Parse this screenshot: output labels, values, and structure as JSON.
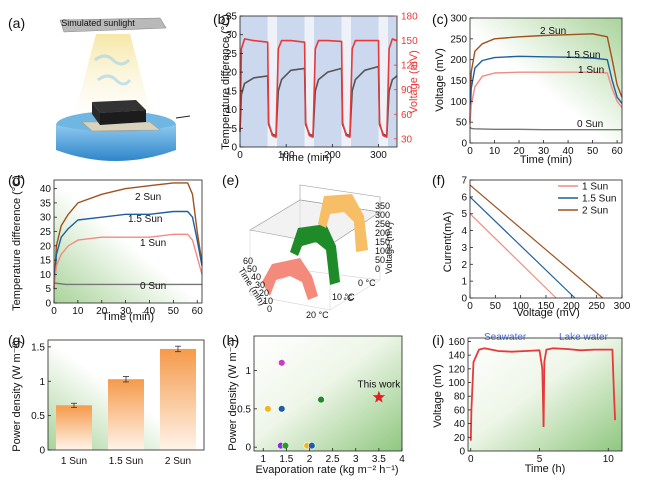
{
  "panels": {
    "a": {
      "label": "(a)",
      "lamp_text": "Simulated sunlight"
    },
    "b": {
      "label": "(b)"
    },
    "c": {
      "label": "(c)"
    },
    "d": {
      "label": "(d)"
    },
    "e": {
      "label": "(e)"
    },
    "f": {
      "label": "(f)"
    },
    "g": {
      "label": "(g)"
    },
    "h": {
      "label": "(h)"
    },
    "i": {
      "label": "(i)"
    }
  },
  "colors": {
    "red": "#e8393a",
    "dark_gray": "#555555",
    "sun1": "#f28b82",
    "sun15": "#1f5f9e",
    "sun2": "#a0521e",
    "gray": "#777777",
    "blue_band": "#b9cbe8",
    "green_bar": "#1e8a28",
    "salmon_bar": "#f48a7c",
    "yellow_bar": "#f7be65",
    "seawater": "#4a6fd8",
    "lake": "#4a6fd8",
    "star": "#e02020"
  },
  "chart_data": [
    {
      "id": "b",
      "type": "line",
      "xlabel": "Time (min)",
      "ylabel": "Temperature difference (°C)",
      "ylabel2": "Voltage (mV)",
      "xlim": [
        0,
        340
      ],
      "ylim": [
        0,
        35
      ],
      "ylim2": [
        20,
        180
      ],
      "xticks": [
        0,
        100,
        200,
        300
      ],
      "yticks": [
        0,
        5,
        10,
        15,
        20,
        25,
        30,
        35
      ],
      "yticks2": [
        30,
        60,
        90,
        120,
        150,
        180
      ],
      "illuminated_intervals": [
        [
          0,
          60
        ],
        [
          80,
          140
        ],
        [
          160,
          220
        ],
        [
          240,
          300
        ],
        [
          320,
          340
        ]
      ],
      "series": [
        {
          "name": "Temperature difference",
          "axis": "left",
          "color": "#555555",
          "x": [
            0,
            3,
            10,
            30,
            60,
            62,
            70,
            78,
            83,
            90,
            110,
            140,
            142,
            150,
            158,
            163,
            170,
            190,
            220,
            222,
            230,
            238,
            243,
            250,
            270,
            300,
            302,
            310,
            318,
            323,
            330,
            340
          ],
          "y": [
            4,
            14,
            17,
            18.5,
            19,
            6,
            3.5,
            3,
            15,
            18,
            20.5,
            21,
            6,
            3.5,
            3,
            15,
            18,
            20,
            21,
            6,
            3.5,
            3,
            15,
            18,
            20.5,
            21.5,
            6,
            3.5,
            3,
            15,
            18,
            19
          ]
        },
        {
          "name": "Voltage",
          "axis": "right",
          "color": "#e8393a",
          "x": [
            0,
            3,
            10,
            30,
            60,
            62,
            70,
            78,
            83,
            90,
            110,
            140,
            142,
            150,
            158,
            163,
            170,
            190,
            220,
            222,
            230,
            238,
            243,
            250,
            270,
            300,
            302,
            310,
            318,
            323,
            330,
            340
          ],
          "y": [
            40,
            140,
            152,
            150,
            148,
            50,
            34,
            32,
            140,
            150,
            150,
            148,
            50,
            34,
            32,
            140,
            150,
            150,
            149,
            50,
            34,
            32,
            140,
            150,
            150,
            150,
            50,
            34,
            32,
            140,
            152,
            150
          ]
        }
      ]
    },
    {
      "id": "c",
      "type": "line",
      "xlabel": "Time (min)",
      "ylabel": "Voltage (mV)",
      "xlim": [
        0,
        62
      ],
      "ylim": [
        0,
        300
      ],
      "xticks": [
        0,
        10,
        20,
        30,
        40,
        50,
        60
      ],
      "yticks": [
        0,
        50,
        100,
        150,
        200,
        250,
        300
      ],
      "series": [
        {
          "name": "2 Sun",
          "color": "#a0521e",
          "x": [
            0,
            0.5,
            2,
            5,
            10,
            20,
            30,
            40,
            50,
            56,
            58,
            60,
            62
          ],
          "y": [
            55,
            170,
            220,
            238,
            250,
            255,
            258,
            260,
            262,
            255,
            200,
            140,
            110
          ]
        },
        {
          "name": "1.5 Sun",
          "color": "#1f5f9e",
          "x": [
            0,
            0.5,
            2,
            5,
            10,
            20,
            30,
            40,
            50,
            56,
            58,
            60,
            62
          ],
          "y": [
            50,
            130,
            180,
            198,
            205,
            208,
            207,
            206,
            204,
            200,
            150,
            110,
            95
          ]
        },
        {
          "name": "1 Sun",
          "color": "#f28b82",
          "x": [
            0,
            0.5,
            2,
            5,
            10,
            20,
            30,
            40,
            50,
            56,
            58,
            60,
            62
          ],
          "y": [
            45,
            90,
            135,
            160,
            168,
            170,
            170,
            170,
            170,
            168,
            130,
            100,
            85
          ]
        },
        {
          "name": "0 Sun",
          "color": "#777777",
          "x": [
            0,
            0.5,
            2,
            10,
            20,
            30,
            40,
            50,
            60,
            62
          ],
          "y": [
            38,
            35,
            34,
            33,
            33,
            32,
            32,
            32,
            32,
            32
          ]
        }
      ]
    },
    {
      "id": "d",
      "type": "line",
      "xlabel": "Time (min)",
      "ylabel": "Temperature difference (°C)",
      "xlim": [
        0,
        62
      ],
      "ylim": [
        0,
        43
      ],
      "xticks": [
        0,
        10,
        20,
        30,
        40,
        50,
        60
      ],
      "yticks": [
        0,
        5,
        10,
        15,
        20,
        25,
        30,
        35,
        40
      ],
      "series": [
        {
          "name": "2 Sun",
          "color": "#a0521e",
          "x": [
            0,
            1,
            3,
            6,
            10,
            20,
            30,
            40,
            50,
            56,
            58,
            60,
            62
          ],
          "y": [
            5,
            20,
            27,
            31,
            35,
            38,
            40,
            41,
            42,
            42,
            38,
            25,
            14
          ]
        },
        {
          "name": "1.5 Sun",
          "color": "#1f5f9e",
          "x": [
            0,
            1,
            3,
            6,
            10,
            20,
            30,
            40,
            50,
            56,
            58,
            60,
            62
          ],
          "y": [
            5,
            17,
            23,
            26,
            29,
            30,
            31,
            31,
            32,
            32,
            30,
            22,
            13
          ]
        },
        {
          "name": "1 Sun",
          "color": "#f28b82",
          "x": [
            0,
            1,
            3,
            6,
            10,
            20,
            30,
            40,
            50,
            56,
            58,
            60,
            62
          ],
          "y": [
            5,
            13,
            17,
            20,
            22,
            23,
            23,
            23,
            24,
            24,
            22,
            16,
            10
          ]
        },
        {
          "name": "0 Sun",
          "color": "#777777",
          "x": [
            0,
            5,
            10,
            20,
            30,
            40,
            50,
            60,
            62
          ],
          "y": [
            7,
            6.5,
            6.5,
            6.5,
            6.5,
            6.5,
            6.5,
            6.5,
            6.5
          ]
        }
      ]
    },
    {
      "id": "e",
      "type": "other",
      "axis_labels": [
        "Time (min)",
        "°C",
        "Voltage (mV)"
      ],
      "tick_labels": [
        "350",
        "300",
        "250",
        "200",
        "150",
        "100",
        "50",
        "0",
        "60",
        "50",
        "40",
        "30",
        "20",
        "10",
        "0",
        "20 °C",
        "10 °C",
        "0 °C"
      ],
      "description": "3D ribbon plot of voltage vs time at 0, 10 and 20 °C"
    },
    {
      "id": "f",
      "type": "line",
      "xlabel": "Voltage (mV)",
      "ylabel": "Current(mA)",
      "xlim": [
        0,
        300
      ],
      "ylim": [
        0,
        7
      ],
      "xticks": [
        0,
        50,
        100,
        150,
        200,
        250,
        300
      ],
      "yticks": [
        0,
        1,
        2,
        3,
        4,
        5,
        6,
        7
      ],
      "series": [
        {
          "name": "1 Sun",
          "color": "#f28b82",
          "x": [
            0,
            170
          ],
          "y": [
            5.0,
            0
          ]
        },
        {
          "name": "1.5 Sun",
          "color": "#1f5f9e",
          "x": [
            0,
            207
          ],
          "y": [
            6.0,
            0
          ]
        },
        {
          "name": "2 Sun",
          "color": "#a0521e",
          "x": [
            0,
            262
          ],
          "y": [
            6.7,
            0
          ]
        }
      ]
    },
    {
      "id": "g",
      "type": "bar",
      "ylabel": "Power density (W m⁻²)",
      "ylim": [
        0,
        1.6
      ],
      "yticks": [
        0,
        0.5,
        1,
        1.5
      ],
      "ytick_labels": [
        "0",
        "0.5",
        "1",
        "1.5"
      ],
      "categories": [
        "1 Sun",
        "1.5 Sun",
        "2 Sun"
      ],
      "values": [
        0.65,
        1.03,
        1.47
      ],
      "errors": [
        0.03,
        0.04,
        0.04
      ]
    },
    {
      "id": "h",
      "type": "scatter",
      "xlabel": "Evaporation rate (kg m⁻² h⁻¹)",
      "ylabel": "Power density (W m⁻²)",
      "xlim": [
        0.8,
        4
      ],
      "ylim": [
        -0.05,
        1.45
      ],
      "xticks": [
        1,
        1.5,
        2,
        2.5,
        3,
        3.5,
        4
      ],
      "yticks": [
        0,
        0.5,
        1
      ],
      "points": [
        {
          "x": 1.4,
          "y": 1.1,
          "color": "#c83cc8"
        },
        {
          "x": 1.1,
          "y": 0.5,
          "color": "#f2b51e"
        },
        {
          "x": 1.4,
          "y": 0.5,
          "color": "#1f5f9e"
        },
        {
          "x": 2.25,
          "y": 0.62,
          "color": "#1e8a28"
        },
        {
          "x": 1.38,
          "y": 0.02,
          "color": "#8a2be2"
        },
        {
          "x": 1.48,
          "y": 0.02,
          "color": "#22a022"
        },
        {
          "x": 1.95,
          "y": 0.02,
          "color": "#f2b51e"
        },
        {
          "x": 2.05,
          "y": 0.02,
          "color": "#1f5f9e"
        }
      ],
      "highlight": {
        "x": 3.5,
        "y": 0.65,
        "label": "This work",
        "marker": "star"
      }
    },
    {
      "id": "i",
      "type": "line",
      "xlabel": "Time (h)",
      "ylabel": "Voltage (mV)",
      "xlim": [
        -0.2,
        11
      ],
      "ylim": [
        0,
        165
      ],
      "xticks": [
        0,
        5,
        10
      ],
      "yticks": [
        0,
        20,
        40,
        60,
        80,
        100,
        120,
        140,
        160
      ],
      "annotations": [
        "Seawater",
        "Lake water"
      ],
      "series": [
        {
          "name": "Seawater",
          "color": "#e8393a",
          "x": [
            0,
            0.05,
            0.2,
            0.6,
            1,
            2,
            3,
            4,
            5,
            5.2,
            5.3
          ],
          "y": [
            15,
            60,
            130,
            148,
            150,
            146,
            145,
            146,
            147,
            120,
            35
          ]
        },
        {
          "name": "Lake water",
          "color": "#e8393a",
          "x": [
            5.3,
            5.35,
            5.5,
            6,
            7,
            8,
            9,
            10,
            10.3,
            10.4,
            10.5
          ],
          "y": [
            35,
            130,
            148,
            150,
            149,
            147,
            148,
            148,
            148,
            90,
            45
          ]
        }
      ]
    }
  ]
}
